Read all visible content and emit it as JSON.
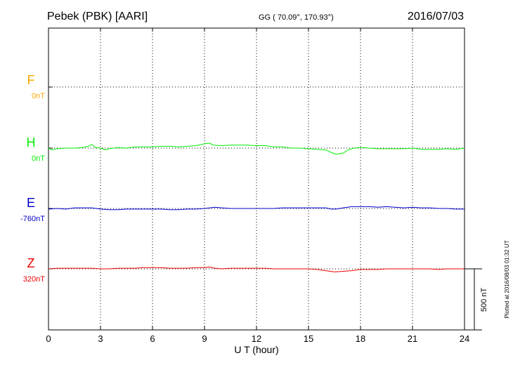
{
  "header": {
    "station": "Pebek (PBK)  [AARI]",
    "coords": "GG ( 70.09°, 170.93°)",
    "date": "2016/07/03"
  },
  "plotted_note": "Plotted at 2016/08/03 01:32 UT",
  "scale_label": "500 nT",
  "chart_data": {
    "type": "line",
    "xlabel": "U T (hour)",
    "xlim": [
      0,
      24
    ],
    "x_ticks": [
      0,
      3,
      6,
      9,
      12,
      15,
      18,
      21,
      24
    ],
    "x_tick_labels": [
      "0",
      "3",
      "6",
      "9",
      "12",
      "15",
      "18",
      "21",
      "24"
    ],
    "y_unit": "nT",
    "scale_bar_nT": 500,
    "grid": true,
    "series": [
      {
        "name": "F",
        "baseline": "0nT",
        "color": "#ffa500",
        "data": []
      },
      {
        "name": "H",
        "baseline": "0nT",
        "color": "#00ee00",
        "data": [
          [
            0,
            0
          ],
          [
            0.2,
            -15
          ],
          [
            0.5,
            -5
          ],
          [
            1,
            0
          ],
          [
            1.5,
            0
          ],
          [
            2,
            5
          ],
          [
            2.3,
            15
          ],
          [
            2.5,
            30
          ],
          [
            2.7,
            5
          ],
          [
            3,
            0
          ],
          [
            3.3,
            -15
          ],
          [
            3.5,
            -5
          ],
          [
            4,
            5
          ],
          [
            4.5,
            0
          ],
          [
            5,
            10
          ],
          [
            5.5,
            10
          ],
          [
            6,
            10
          ],
          [
            6.5,
            15
          ],
          [
            7,
            15
          ],
          [
            7.5,
            10
          ],
          [
            8,
            15
          ],
          [
            8.5,
            20
          ],
          [
            9,
            35
          ],
          [
            9.3,
            40
          ],
          [
            9.5,
            25
          ],
          [
            10,
            20
          ],
          [
            10.5,
            25
          ],
          [
            11,
            25
          ],
          [
            11.5,
            25
          ],
          [
            12,
            20
          ],
          [
            12.5,
            20
          ],
          [
            13,
            10
          ],
          [
            13.5,
            10
          ],
          [
            14,
            0
          ],
          [
            14.5,
            0
          ],
          [
            15,
            -5
          ],
          [
            15.5,
            -10
          ],
          [
            16,
            -15
          ],
          [
            16.3,
            -35
          ],
          [
            16.6,
            -50
          ],
          [
            17,
            -40
          ],
          [
            17.3,
            -15
          ],
          [
            17.6,
            0
          ],
          [
            18,
            5
          ],
          [
            18.5,
            0
          ],
          [
            19,
            -5
          ],
          [
            19.5,
            -5
          ],
          [
            20,
            -5
          ],
          [
            20.5,
            -5
          ],
          [
            21,
            0
          ],
          [
            21.5,
            -10
          ],
          [
            22,
            -10
          ],
          [
            22.5,
            -10
          ],
          [
            23,
            -5
          ],
          [
            23.5,
            -10
          ],
          [
            24,
            0
          ]
        ]
      },
      {
        "name": "E",
        "baseline": "-760nT",
        "color": "#0000cc",
        "data": [
          [
            0,
            -5
          ],
          [
            0.5,
            0
          ],
          [
            1,
            -5
          ],
          [
            1.5,
            5
          ],
          [
            2,
            5
          ],
          [
            2.5,
            5
          ],
          [
            3,
            -5
          ],
          [
            3.5,
            -10
          ],
          [
            4,
            -10
          ],
          [
            4.5,
            -5
          ],
          [
            5,
            -5
          ],
          [
            5.5,
            -5
          ],
          [
            6,
            -5
          ],
          [
            6.5,
            -5
          ],
          [
            7,
            -10
          ],
          [
            7.5,
            -10
          ],
          [
            8,
            -5
          ],
          [
            8.5,
            -5
          ],
          [
            9,
            0
          ],
          [
            9.3,
            5
          ],
          [
            9.6,
            10
          ],
          [
            10,
            5
          ],
          [
            10.5,
            0
          ],
          [
            11,
            0
          ],
          [
            11.5,
            0
          ],
          [
            12,
            0
          ],
          [
            12.5,
            0
          ],
          [
            13,
            0
          ],
          [
            13.5,
            5
          ],
          [
            14,
            5
          ],
          [
            14.5,
            5
          ],
          [
            15,
            5
          ],
          [
            15.5,
            5
          ],
          [
            16,
            5
          ],
          [
            16.3,
            -5
          ],
          [
            16.6,
            -5
          ],
          [
            17,
            5
          ],
          [
            17.5,
            15
          ],
          [
            18,
            15
          ],
          [
            18.5,
            15
          ],
          [
            19,
            10
          ],
          [
            19.5,
            15
          ],
          [
            20,
            10
          ],
          [
            20.5,
            5
          ],
          [
            21,
            10
          ],
          [
            21.5,
            5
          ],
          [
            22,
            5
          ],
          [
            22.5,
            0
          ],
          [
            23,
            0
          ],
          [
            23.5,
            -5
          ],
          [
            24,
            -5
          ]
        ]
      },
      {
        "name": "Z",
        "baseline": "320nT",
        "color": "#ee0000",
        "data": [
          [
            0,
            0
          ],
          [
            0.5,
            5
          ],
          [
            1,
            5
          ],
          [
            1.5,
            5
          ],
          [
            2,
            5
          ],
          [
            2.5,
            5
          ],
          [
            3,
            0
          ],
          [
            3.5,
            0
          ],
          [
            4,
            5
          ],
          [
            4.5,
            5
          ],
          [
            5,
            5
          ],
          [
            5.5,
            10
          ],
          [
            6,
            10
          ],
          [
            6.5,
            10
          ],
          [
            7,
            5
          ],
          [
            7.5,
            5
          ],
          [
            8,
            5
          ],
          [
            8.5,
            10
          ],
          [
            9,
            10
          ],
          [
            9.3,
            15
          ],
          [
            9.6,
            5
          ],
          [
            10,
            0
          ],
          [
            10.5,
            5
          ],
          [
            11,
            5
          ],
          [
            11.5,
            5
          ],
          [
            12,
            5
          ],
          [
            12.5,
            5
          ],
          [
            13,
            0
          ],
          [
            13.5,
            0
          ],
          [
            14,
            0
          ],
          [
            14.5,
            0
          ],
          [
            15,
            0
          ],
          [
            15.5,
            -5
          ],
          [
            16,
            -15
          ],
          [
            16.5,
            -25
          ],
          [
            17,
            -20
          ],
          [
            17.5,
            -15
          ],
          [
            18,
            -5
          ],
          [
            18.5,
            -5
          ],
          [
            19,
            -5
          ],
          [
            19.5,
            0
          ],
          [
            20,
            0
          ],
          [
            20.5,
            0
          ],
          [
            21,
            0
          ],
          [
            21.5,
            0
          ],
          [
            22,
            0
          ],
          [
            22.5,
            -5
          ],
          [
            23,
            0
          ],
          [
            23.5,
            0
          ],
          [
            24,
            0
          ]
        ]
      }
    ]
  }
}
